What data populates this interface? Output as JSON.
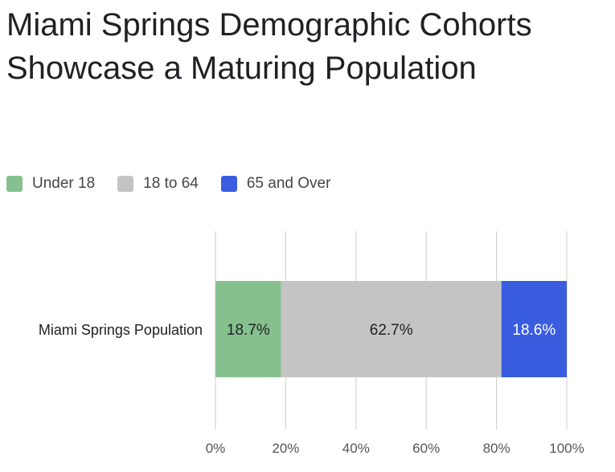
{
  "chart_data": {
    "type": "bar",
    "orientation": "horizontal",
    "stacked": true,
    "title": "Miami Springs Demographic Cohorts Showcase a Maturing Population",
    "categories": [
      "Miami Springs Population"
    ],
    "series": [
      {
        "name": "Under 18",
        "values": [
          18.7
        ],
        "label": "18.7%",
        "color": "#86c08e",
        "label_color": "#202124"
      },
      {
        "name": "18 to 64",
        "values": [
          62.7
        ],
        "label": "62.7%",
        "color": "#c4c4c4",
        "label_color": "#202124"
      },
      {
        "name": "65 and Over",
        "values": [
          18.6
        ],
        "label": "18.6%",
        "color": "#3a5de0",
        "label_color": "#ffffff"
      }
    ],
    "xlim": [
      0,
      100
    ],
    "x_ticks": [
      "0%",
      "20%",
      "40%",
      "60%",
      "80%",
      "100%"
    ],
    "grid": true,
    "legend_position": "top-left"
  }
}
